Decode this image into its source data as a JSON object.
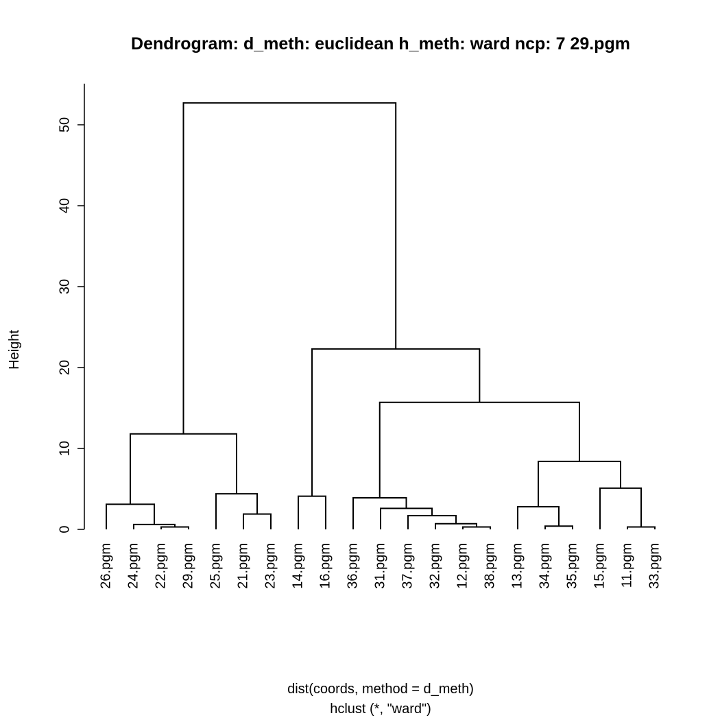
{
  "chart_data": {
    "type": "dendrogram",
    "title": "Dendrogram: d_meth: euclidean h_meth: ward ncp: 7 29.pgm",
    "xlabel_line1": "dist(coords, method = d_meth)",
    "xlabel_line2": "hclust (*, \"ward\")",
    "ylabel": "Height",
    "ylim": [
      0,
      55
    ],
    "yticks": [
      0,
      10,
      20,
      30,
      40,
      50
    ],
    "leaves": [
      "26.pgm",
      "24.pgm",
      "22.pgm",
      "29.pgm",
      "25.pgm",
      "21.pgm",
      "23.pgm",
      "14.pgm",
      "16.pgm",
      "36.pgm",
      "31.pgm",
      "37.pgm",
      "32.pgm",
      "12.pgm",
      "38.pgm",
      "13.pgm",
      "34.pgm",
      "35.pgm",
      "15.pgm",
      "11.pgm",
      "33.pgm"
    ],
    "merges": [
      {
        "left": "L2",
        "right": "L3",
        "height": 0.3
      },
      {
        "left": "L1",
        "right": "M0",
        "height": 0.6
      },
      {
        "left": "L0",
        "right": "M1",
        "height": 3.1
      },
      {
        "left": "L5",
        "right": "L6",
        "height": 1.9
      },
      {
        "left": "L4",
        "right": "M3",
        "height": 4.4
      },
      {
        "left": "M2",
        "right": "M4",
        "height": 11.8
      },
      {
        "left": "L7",
        "right": "L8",
        "height": 4.1
      },
      {
        "left": "L13",
        "right": "L14",
        "height": 0.3
      },
      {
        "left": "L12",
        "right": "M7",
        "height": 0.7
      },
      {
        "left": "L11",
        "right": "M8",
        "height": 1.7
      },
      {
        "left": "L10",
        "right": "M9",
        "height": 2.6
      },
      {
        "left": "L9",
        "right": "M10",
        "height": 3.9
      },
      {
        "left": "L16",
        "right": "L17",
        "height": 0.4
      },
      {
        "left": "L15",
        "right": "M12",
        "height": 2.8
      },
      {
        "left": "L19",
        "right": "L20",
        "height": 0.3
      },
      {
        "left": "L18",
        "right": "M14",
        "height": 5.1
      },
      {
        "left": "M13",
        "right": "M15",
        "height": 8.4
      },
      {
        "left": "M11",
        "right": "M16",
        "height": 15.7
      },
      {
        "left": "M6",
        "right": "M17",
        "height": 22.3
      },
      {
        "left": "M5",
        "right": "M18",
        "height": 52.7
      }
    ]
  }
}
